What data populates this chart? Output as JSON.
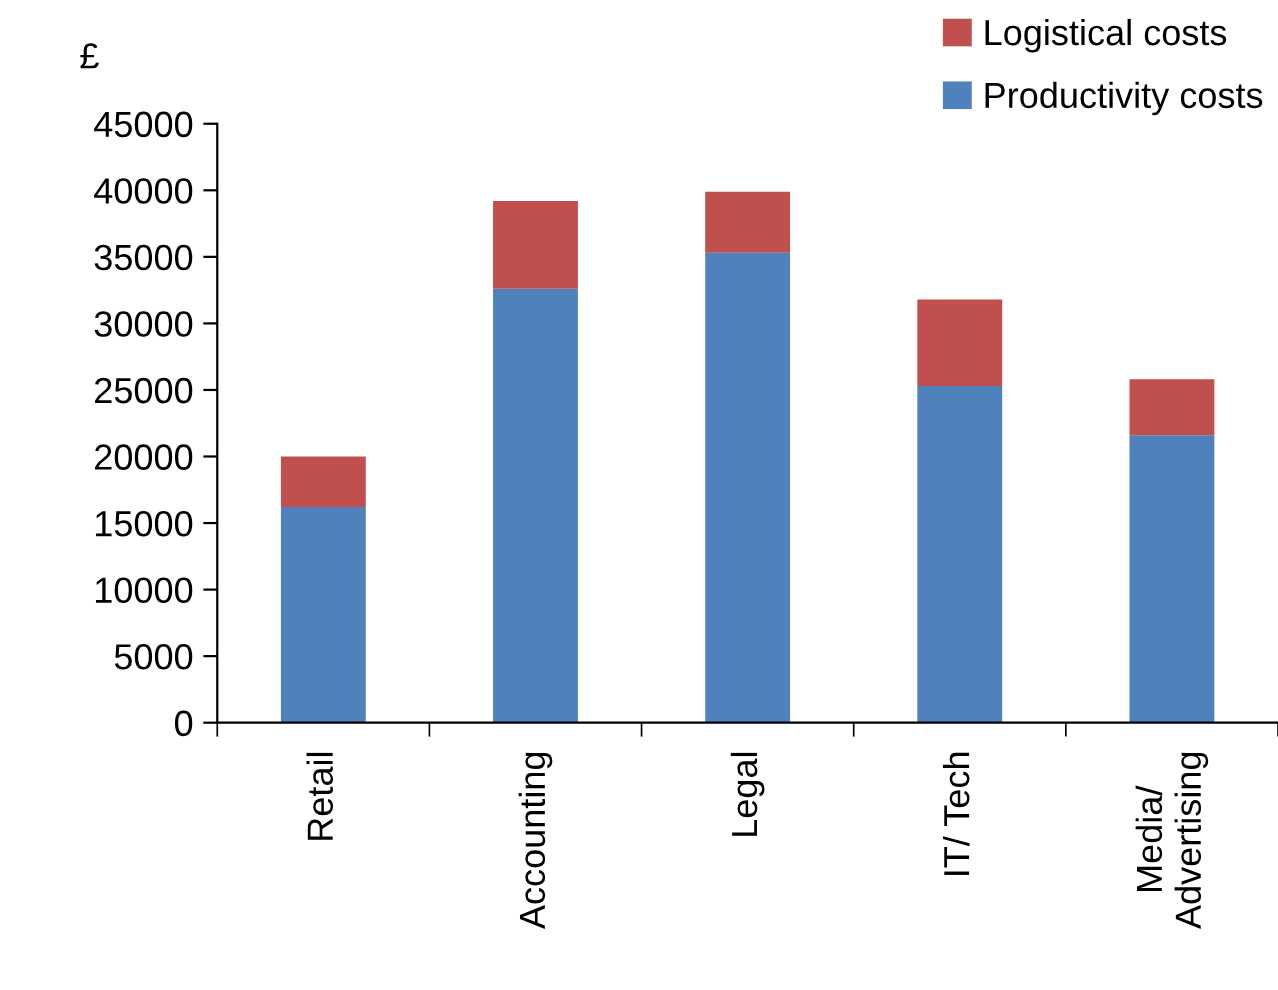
{
  "chart_data": {
    "type": "bar",
    "stacked": true,
    "ylabel": "£",
    "categories": [
      "Retail",
      "Accounting",
      "Legal",
      "IT/ Tech",
      "Media/\nAdvertising"
    ],
    "series": [
      {
        "name": "Productivity costs",
        "color": "#4f81bd",
        "values": [
          16200,
          32600,
          35300,
          25300,
          21600
        ]
      },
      {
        "name": "Logistical costs",
        "color": "#c0504d",
        "values": [
          3800,
          6600,
          4600,
          6500,
          4200
        ]
      }
    ],
    "ylim": [
      0,
      45000
    ],
    "yticks": [
      0,
      5000,
      10000,
      15000,
      20000,
      25000,
      30000,
      35000,
      40000,
      45000
    ],
    "grid": false,
    "legend": "top right"
  }
}
